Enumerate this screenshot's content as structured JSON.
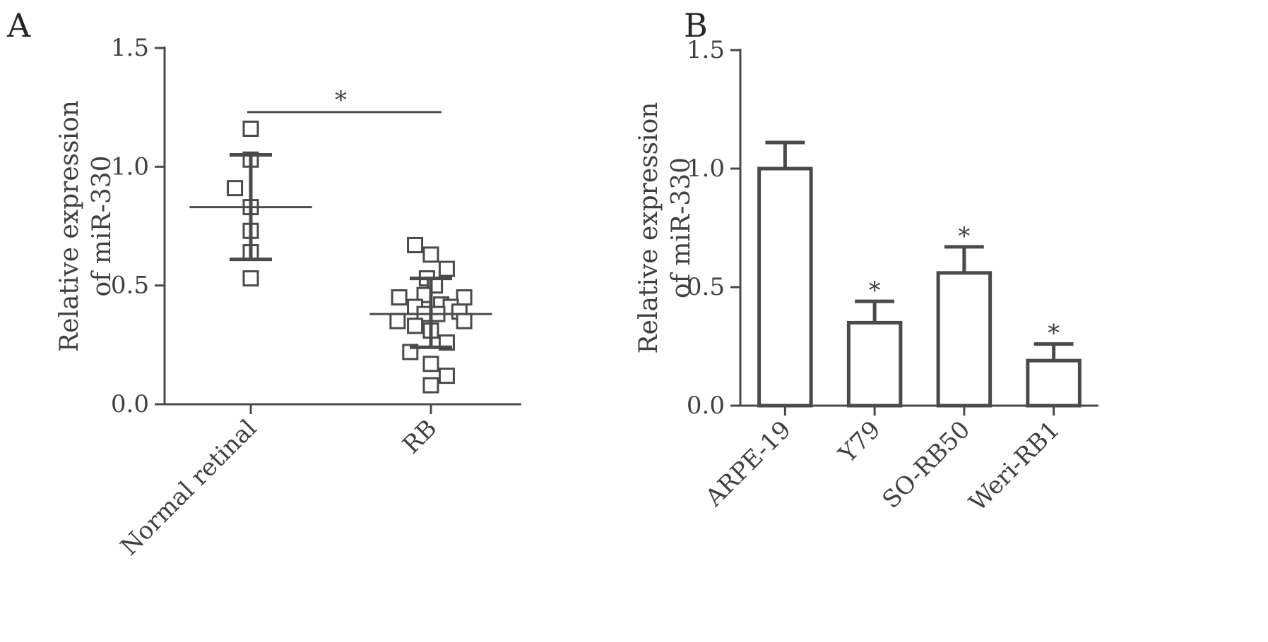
{
  "panels": {
    "a": {
      "label": "A"
    },
    "b": {
      "label": "B"
    }
  },
  "colors": {
    "ink": "#4a4a4a",
    "background": "#ffffff"
  },
  "chart_data": [
    {
      "panel": "A",
      "type": "scatter",
      "ylabel": [
        "Relative expression",
        "of miR-330"
      ],
      "xlabel": "",
      "ylim": [
        0,
        1.5
      ],
      "yticks": [
        0.0,
        0.5,
        1.0,
        1.5
      ],
      "ytick_labels": [
        "0.0",
        "0.5",
        "1.0",
        "1.5"
      ],
      "grid": false,
      "marker": "open-square",
      "categories": [
        "Normal retinal",
        "RB"
      ],
      "groups": [
        {
          "category": "Normal retinal",
          "mean": 0.83,
          "sd_upper": 1.05,
          "sd_lower": 0.61,
          "points": [
            {
              "x": 0.0,
              "y": 1.16
            },
            {
              "x": 0.0,
              "y": 1.03
            },
            {
              "x": -0.2,
              "y": 0.91
            },
            {
              "x": 0.0,
              "y": 0.83
            },
            {
              "x": 0.0,
              "y": 0.73
            },
            {
              "x": 0.0,
              "y": 0.64
            },
            {
              "x": 0.0,
              "y": 0.53
            }
          ]
        },
        {
          "category": "RB",
          "mean": 0.38,
          "sd_upper": 0.53,
          "sd_lower": 0.24,
          "points": [
            {
              "x": -0.2,
              "y": 0.67
            },
            {
              "x": 0.0,
              "y": 0.63
            },
            {
              "x": 0.2,
              "y": 0.57
            },
            {
              "x": -0.05,
              "y": 0.53
            },
            {
              "x": 0.05,
              "y": 0.5
            },
            {
              "x": -0.08,
              "y": 0.46
            },
            {
              "x": -0.4,
              "y": 0.45
            },
            {
              "x": 0.42,
              "y": 0.45
            },
            {
              "x": -0.2,
              "y": 0.41
            },
            {
              "x": 0.13,
              "y": 0.42
            },
            {
              "x": 0.25,
              "y": 0.41
            },
            {
              "x": -0.08,
              "y": 0.38
            },
            {
              "x": 0.08,
              "y": 0.38
            },
            {
              "x": 0.36,
              "y": 0.39
            },
            {
              "x": -0.2,
              "y": 0.33
            },
            {
              "x": 0.0,
              "y": 0.31
            },
            {
              "x": -0.42,
              "y": 0.35
            },
            {
              "x": 0.42,
              "y": 0.35
            },
            {
              "x": 0.2,
              "y": 0.26
            },
            {
              "x": -0.26,
              "y": 0.22
            },
            {
              "x": 0.0,
              "y": 0.17
            },
            {
              "x": 0.2,
              "y": 0.12
            },
            {
              "x": 0.0,
              "y": 0.08
            }
          ]
        }
      ],
      "annotations": [
        {
          "text": "*",
          "type": "bracket",
          "from": "Normal retinal",
          "to": "RB",
          "y": 1.23
        }
      ]
    },
    {
      "panel": "B",
      "type": "bar",
      "ylabel": [
        "Relative expression",
        "of miR-330"
      ],
      "xlabel": "",
      "ylim": [
        0,
        1.5
      ],
      "yticks": [
        0.0,
        0.5,
        1.0,
        1.5
      ],
      "ytick_labels": [
        "0.0",
        "0.5",
        "1.0",
        "1.5"
      ],
      "grid": false,
      "categories": [
        "ARPE-19",
        "Y79",
        "SO-RB50",
        "Weri-RB1"
      ],
      "values": [
        1.0,
        0.35,
        0.56,
        0.19
      ],
      "errors": [
        0.11,
        0.09,
        0.11,
        0.07
      ],
      "significance": [
        "",
        "*",
        "*",
        "*"
      ]
    }
  ]
}
